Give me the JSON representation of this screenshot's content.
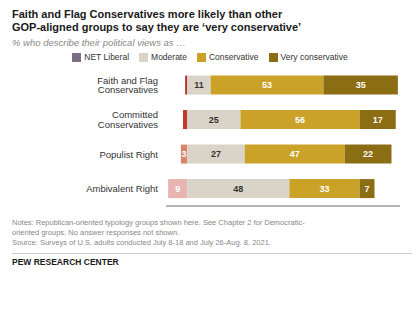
{
  "chart_data": {
    "type": "bar",
    "orientation": "horizontal",
    "stacked": true,
    "title": "Faith and Flag Conservatives more likely than other\nGOP-aligned groups to say they are ‘very conservative’",
    "subtitle": "% who describe their political views as …",
    "categories": [
      "Faith and Flag Conservatives",
      "Committed Conservatives",
      "Populist Right",
      "Ambivalent Right"
    ],
    "series": [
      {
        "name": "NET Liberal",
        "color": "#7b6d82",
        "colors": [
          "#b5312c",
          "#c0392b",
          "#d9836b",
          "#e8b4b0"
        ],
        "values": [
          1,
          2,
          3,
          9
        ],
        "value_labels": [
          null,
          null,
          "3",
          "9"
        ]
      },
      {
        "name": "Moderate",
        "color": "#d9d4c7",
        "values": [
          11,
          25,
          27,
          48
        ]
      },
      {
        "name": "Conservative",
        "color": "#c9a227",
        "values": [
          53,
          56,
          47,
          33
        ]
      },
      {
        "name": "Very conservative",
        "color": "#8b6d14",
        "values": [
          35,
          17,
          22,
          7
        ]
      }
    ],
    "xlim": [
      -10,
      100
    ],
    "data_labels": true,
    "tick_labels": "y",
    "grid": false,
    "legend": "top",
    "annotations": [
      "Notes: Republican-oriented typology groups shown here. See Chapter 2 for Democratic-",
      "oriented groups. No answer responses not shown.",
      "Source: Surveys of U.S. adults conducted July 8-18 and July 26-Aug. 8, 2021.",
      "PEW RESEARCH CENTER"
    ]
  }
}
